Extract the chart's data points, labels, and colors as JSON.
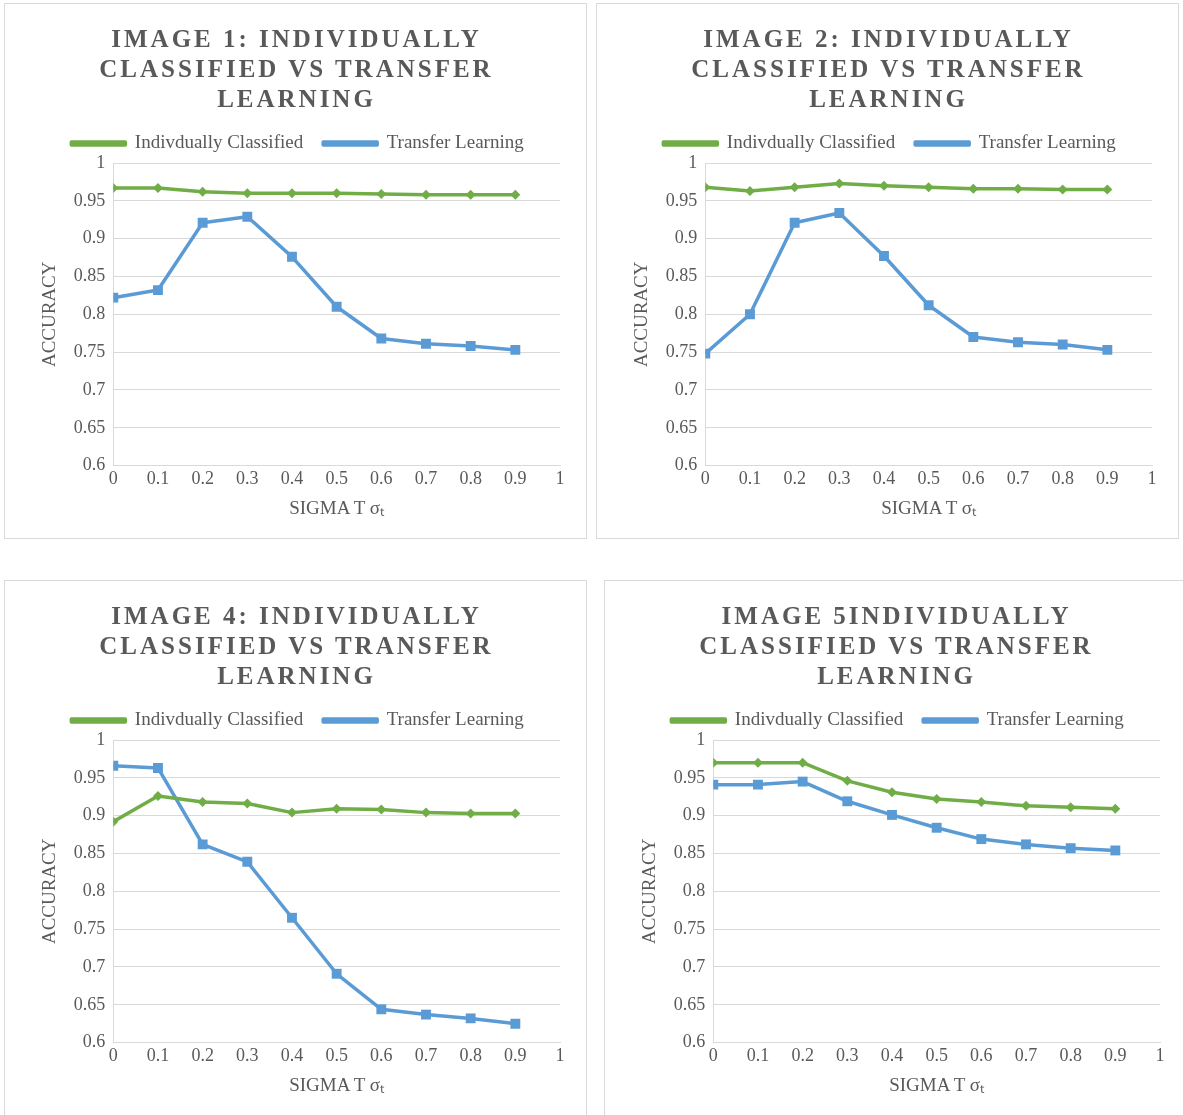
{
  "chart_data": [
    {
      "type": "line",
      "title": "IMAGE 1: INDIVIDUALLY CLASSIFIED VS TRANSFER LEARNING",
      "xlabel": "SIGMA T σₜ",
      "ylabel": "ACCURACY",
      "x": [
        0,
        0.1,
        0.2,
        0.3,
        0.4,
        0.5,
        0.6,
        0.7,
        0.8,
        0.9
      ],
      "xlim": [
        0,
        1
      ],
      "xticks": [
        0,
        0.1,
        0.2,
        0.3,
        0.4,
        0.5,
        0.6,
        0.7,
        0.8,
        0.9,
        1
      ],
      "ylim": [
        0.6,
        1
      ],
      "yticks": [
        0.6,
        0.65,
        0.7,
        0.75,
        0.8,
        0.85,
        0.9,
        0.95,
        1
      ],
      "grid": "y",
      "legend": "top",
      "series": [
        {
          "name": "Indivdually Classified",
          "color": "#70ad47",
          "marker": "diamond",
          "values": [
            0.967,
            0.967,
            0.962,
            0.96,
            0.96,
            0.96,
            0.959,
            0.958,
            0.958,
            0.958
          ]
        },
        {
          "name": "Transfer Learning",
          "color": "#5b9bd5",
          "marker": "square",
          "values": [
            0.822,
            0.832,
            0.921,
            0.929,
            0.876,
            0.81,
            0.768,
            0.761,
            0.758,
            0.753
          ]
        }
      ]
    },
    {
      "type": "line",
      "title": "IMAGE 2: INDIVIDUALLY CLASSIFIED VS TRANSFER LEARNING",
      "xlabel": "SIGMA T σₜ",
      "ylabel": "ACCURACY",
      "x": [
        0,
        0.1,
        0.2,
        0.3,
        0.4,
        0.5,
        0.6,
        0.7,
        0.8,
        0.9
      ],
      "xlim": [
        0,
        1
      ],
      "xticks": [
        0,
        0.1,
        0.2,
        0.3,
        0.4,
        0.5,
        0.6,
        0.7,
        0.8,
        0.9,
        1
      ],
      "ylim": [
        0.6,
        1
      ],
      "yticks": [
        0.6,
        0.65,
        0.7,
        0.75,
        0.8,
        0.85,
        0.9,
        0.95,
        1
      ],
      "grid": "y",
      "legend": "top",
      "series": [
        {
          "name": "Indivdually Classified",
          "color": "#70ad47",
          "marker": "diamond",
          "values": [
            0.968,
            0.963,
            0.968,
            0.973,
            0.97,
            0.968,
            0.966,
            0.966,
            0.965,
            0.965
          ]
        },
        {
          "name": "Transfer Learning",
          "color": "#5b9bd5",
          "marker": "square",
          "values": [
            0.748,
            0.8,
            0.921,
            0.934,
            0.877,
            0.812,
            0.77,
            0.763,
            0.76,
            0.753
          ]
        }
      ]
    },
    {
      "type": "line",
      "title": "IMAGE 4: INDIVIDUALLY CLASSIFIED VS TRANSFER LEARNING",
      "xlabel": "SIGMA T σₜ",
      "ylabel": "ACCURACY",
      "x": [
        0,
        0.1,
        0.2,
        0.3,
        0.4,
        0.5,
        0.6,
        0.7,
        0.8,
        0.9
      ],
      "xlim": [
        0,
        1
      ],
      "xticks": [
        0,
        0.1,
        0.2,
        0.3,
        0.4,
        0.5,
        0.6,
        0.7,
        0.8,
        0.9,
        1
      ],
      "ylim": [
        0.6,
        1
      ],
      "yticks": [
        0.6,
        0.65,
        0.7,
        0.75,
        0.8,
        0.85,
        0.9,
        0.95,
        1
      ],
      "grid": "y",
      "legend": "top",
      "series": [
        {
          "name": "Indivdually Classified",
          "color": "#70ad47",
          "marker": "diamond",
          "values": [
            0.892,
            0.926,
            0.918,
            0.916,
            0.904,
            0.909,
            0.908,
            0.904,
            0.903,
            0.903
          ]
        },
        {
          "name": "Transfer Learning",
          "color": "#5b9bd5",
          "marker": "square",
          "values": [
            0.966,
            0.963,
            0.862,
            0.839,
            0.765,
            0.691,
            0.644,
            0.637,
            0.632,
            0.625
          ]
        }
      ]
    },
    {
      "type": "line",
      "title": "IMAGE 5INDIVIDUALLY CLASSIFIED VS TRANSFER LEARNING",
      "xlabel": "SIGMA T σₜ",
      "ylabel": "ACCURACY",
      "x": [
        0,
        0.1,
        0.2,
        0.3,
        0.4,
        0.5,
        0.6,
        0.7,
        0.8,
        0.9
      ],
      "xlim": [
        0,
        1
      ],
      "xticks": [
        0,
        0.1,
        0.2,
        0.3,
        0.4,
        0.5,
        0.6,
        0.7,
        0.8,
        0.9,
        1
      ],
      "ylim": [
        0.6,
        1
      ],
      "yticks": [
        0.6,
        0.65,
        0.7,
        0.75,
        0.8,
        0.85,
        0.9,
        0.95,
        1
      ],
      "grid": "y",
      "legend": "top",
      "series": [
        {
          "name": "Indivdually Classified",
          "color": "#70ad47",
          "marker": "diamond",
          "values": [
            0.97,
            0.97,
            0.97,
            0.946,
            0.931,
            0.922,
            0.918,
            0.913,
            0.911,
            0.909
          ]
        },
        {
          "name": "Transfer Learning",
          "color": "#5b9bd5",
          "marker": "square",
          "values": [
            0.941,
            0.941,
            0.945,
            0.919,
            0.901,
            0.884,
            0.869,
            0.862,
            0.857,
            0.854
          ]
        }
      ]
    }
  ]
}
